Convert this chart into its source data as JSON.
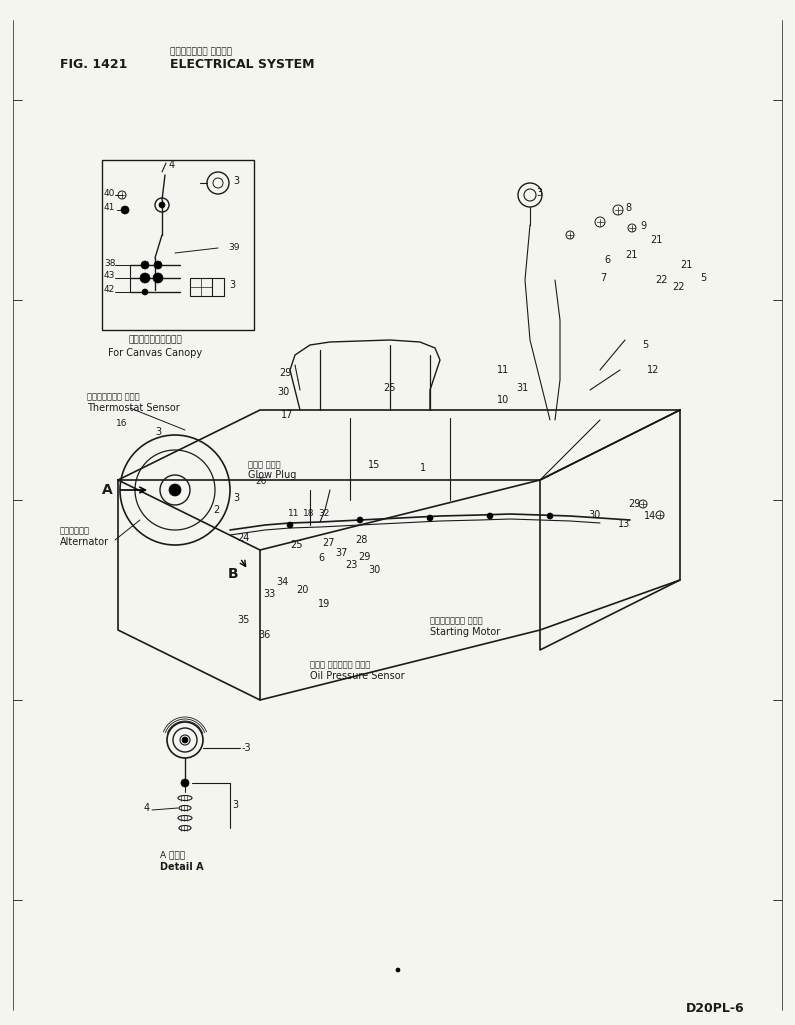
{
  "title_japanese": "エレクトリカル システム",
  "title_english": "ELECTRICAL SYSTEM",
  "fig_label": "FIG. 1421",
  "model_label": "D20PL-6",
  "bg_color": "#f5f5f0",
  "line_color": "#1a1a1a",
  "text_color": "#1a1a1a",
  "canvas_canopy_japanese": "キャンバスキャノピ用",
  "canvas_canopy_english": "For Canvas Canopy",
  "thermostat_japanese": "サーモスタット センサ",
  "thermostat_english": "Thermostat Sensor",
  "alternator_japanese": "オルタネータ",
  "alternator_english": "Alternator",
  "glow_plug_japanese": "グロー プラグ",
  "glow_plug_english": "Glow Plug",
  "starting_motor_japanese": "スターティング モータ",
  "starting_motor_english": "Starting Motor",
  "oil_pressure_japanese": "オイル プレッシャ センサ",
  "oil_pressure_english": "Oil Pressure Sensor",
  "detail_a_japanese": "A 部詳細",
  "detail_a_english": "Detail A"
}
